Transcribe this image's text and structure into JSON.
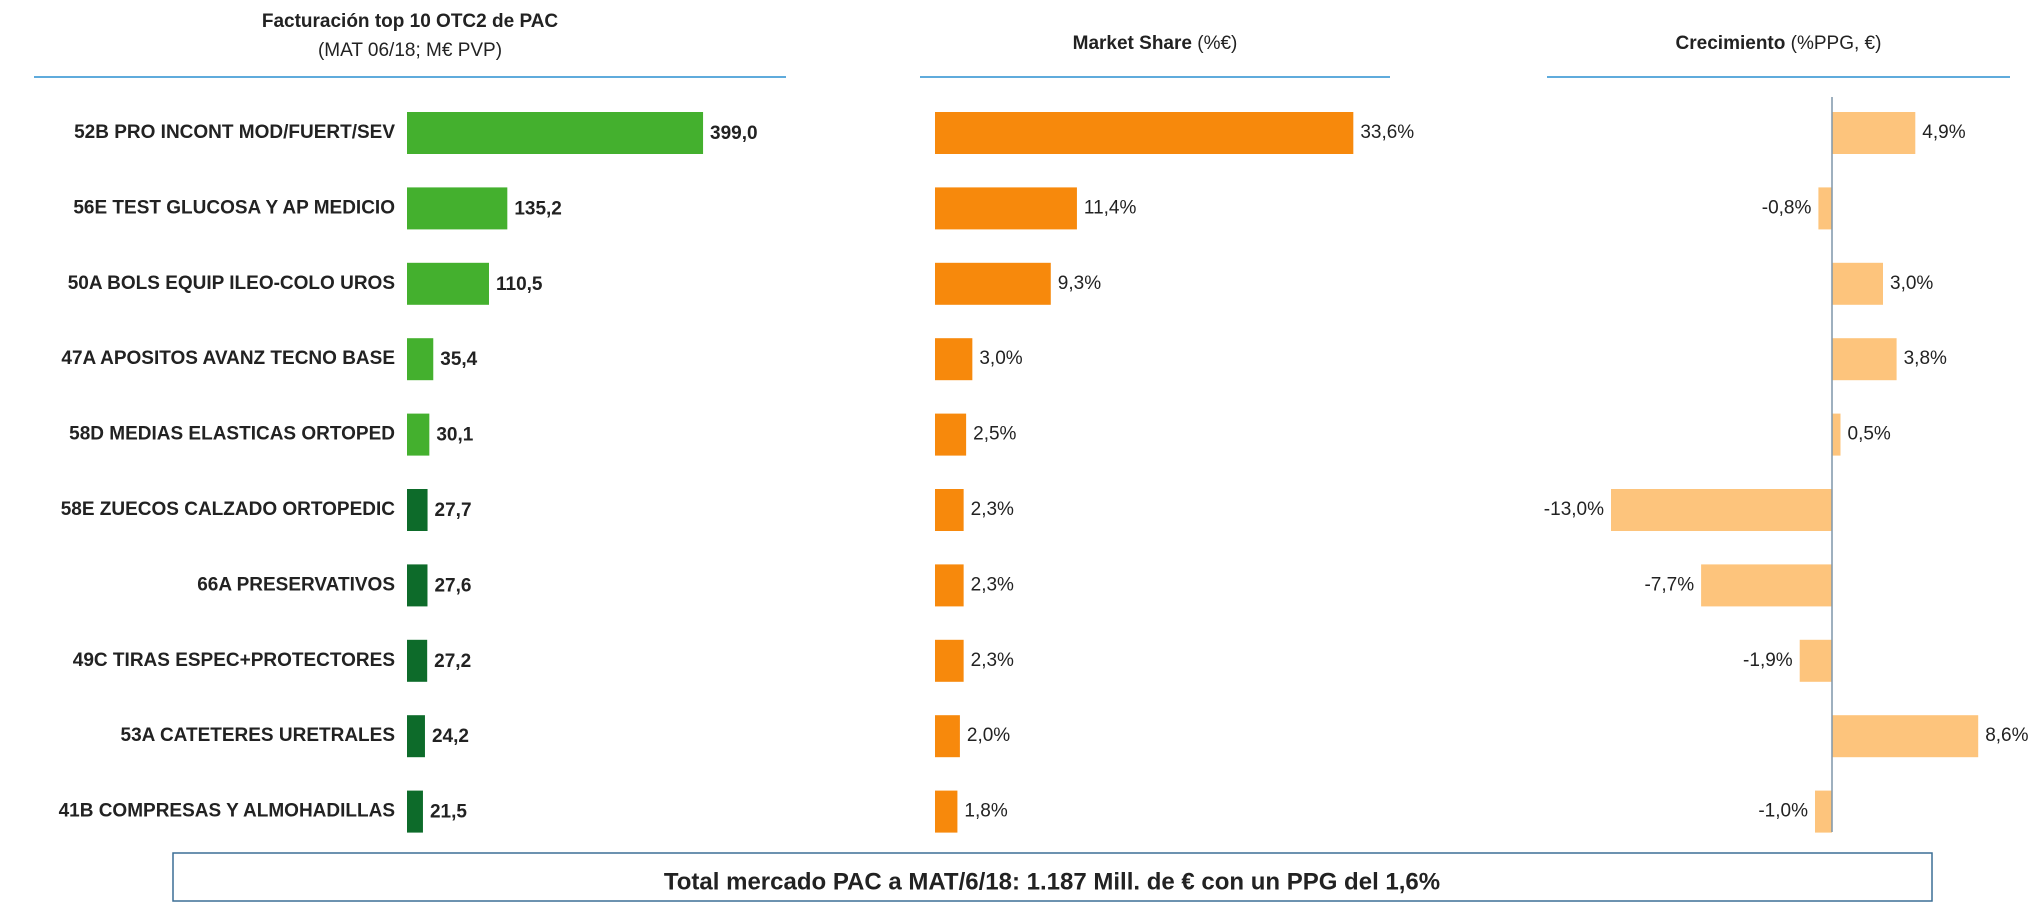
{
  "chart_data": [
    {
      "type": "bar",
      "orientation": "horizontal",
      "title": "Facturación top 10 OTC2 de PAC",
      "subtitle": "(MAT 06/18; M€ PVP)",
      "categories": [
        "52B PRO INCONT MOD/FUERT/SEV",
        "56E TEST GLUCOSA Y AP MEDICIO",
        "50A BOLS EQUIP ILEO-COLO UROS",
        "47A APOSITOS AVANZ TECNO BASE",
        "58D MEDIAS ELASTICAS ORTOPED",
        "58E ZUECOS CALZADO ORTOPEDIC",
        "66A PRESERVATIVOS",
        "49C TIRAS ESPEC+PROTECTORES",
        "53A CATETERES URETRALES",
        "41B COMPRESAS Y ALMOHADILLAS"
      ],
      "values": [
        399.0,
        135.2,
        110.5,
        35.4,
        30.1,
        27.7,
        27.6,
        27.2,
        24.2,
        21.5
      ],
      "value_labels": [
        "399,0",
        "135,2",
        "110,5",
        "35,4",
        "30,1",
        "27,7",
        "27,6",
        "27,2",
        "24,2",
        "21,5"
      ],
      "colors": [
        "#44b02e",
        "#44b02e",
        "#44b02e",
        "#44b02e",
        "#44b02e",
        "#0d6b2a",
        "#0d6b2a",
        "#0d6b2a",
        "#0d6b2a",
        "#0d6b2a"
      ],
      "xlim": [
        0,
        500
      ]
    },
    {
      "type": "bar",
      "orientation": "horizontal",
      "title": "Market Share",
      "subtitle": "(%€)",
      "values": [
        33.6,
        11.4,
        9.3,
        3.0,
        2.5,
        2.3,
        2.3,
        2.3,
        2.0,
        1.8
      ],
      "value_labels": [
        "33,6%",
        "11,4%",
        "9,3%",
        "3,0%",
        "2,5%",
        "2,3%",
        "2,3%",
        "2,3%",
        "2,0%",
        "1,8%"
      ],
      "color": "#f7890c",
      "xlim": [
        0,
        40
      ]
    },
    {
      "type": "bar",
      "orientation": "horizontal",
      "title": "Crecimiento",
      "subtitle": "(%PPG, €)",
      "values": [
        4.9,
        -0.8,
        3.0,
        3.8,
        0.5,
        -13.0,
        -7.7,
        -1.9,
        8.6,
        -1.0
      ],
      "value_labels": [
        "4,9%",
        "-0,8%",
        "3,0%",
        "3,8%",
        "0,5%",
        "-13,0%",
        "-7,7%",
        "-1,9%",
        "8,6%",
        "-1,0%"
      ],
      "color": "#fdc47c",
      "xlim": [
        -14,
        10
      ]
    }
  ],
  "footer": "Total mercado PAC a MAT/6/18: 1.187 Mill. de € con un PPG del 1,6%"
}
